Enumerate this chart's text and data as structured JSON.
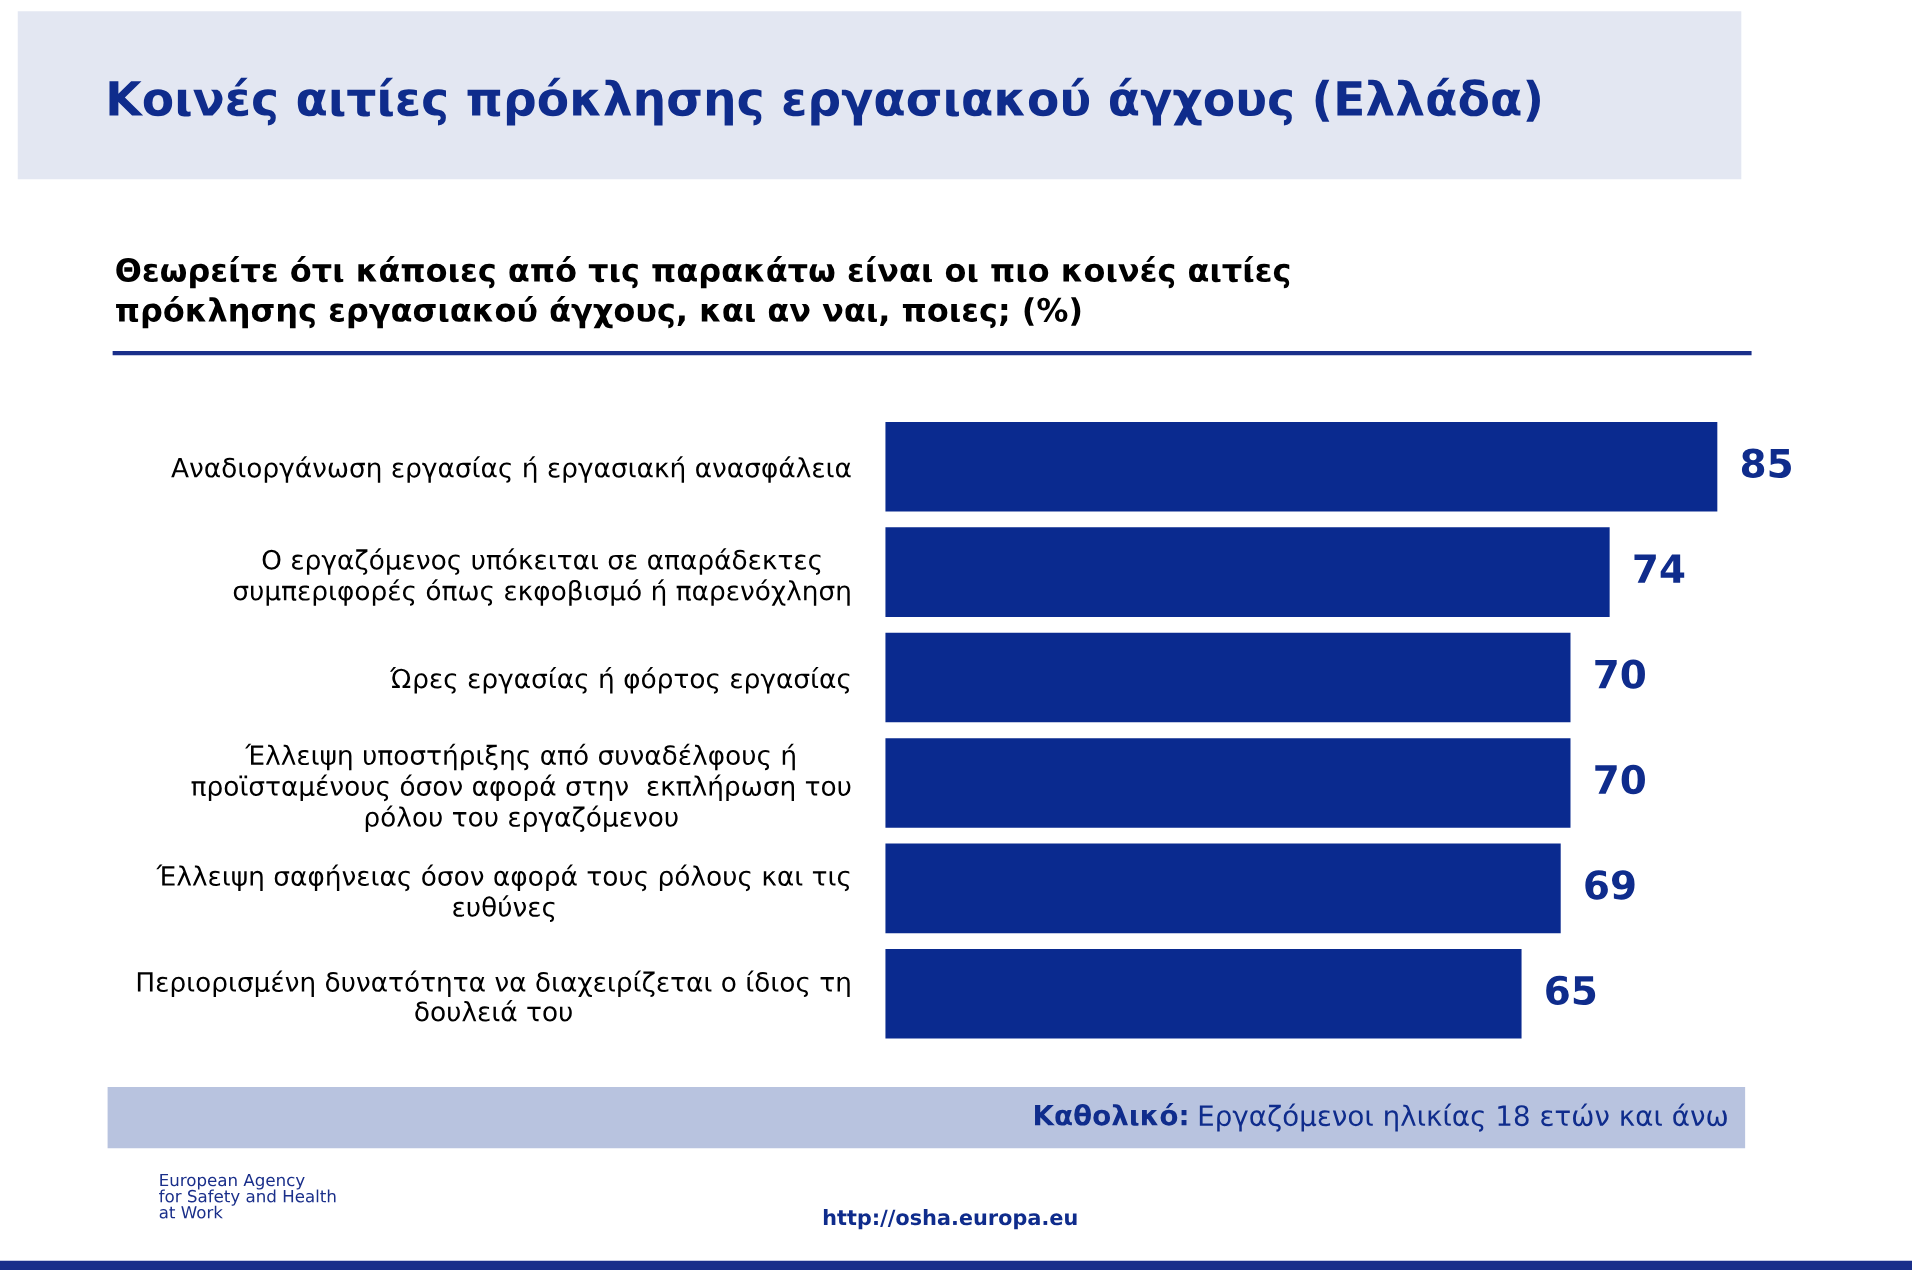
{
  "chart_data": {
    "type": "bar",
    "orientation": "horizontal",
    "title": "Κοινές αιτίες πρόκλησης εργασιακού άγχους (Ελλάδα)",
    "subtitle": "Θεωρείτε ότι κάποιες από τις παρακάτω είναι οι πιο κοινές αιτίες\nπρόκλησης εργασιακού άγχους, και αν ναι, ποιες; (%)",
    "categories": [
      "Αναδιοργάνωση εργασίας ή εργασιακή ανασφάλεια",
      "Ο εργαζόμενος υπόκειται σε απαράδεκτες\nσυμπεριφορές όπως εκφοβισμό ή παρενόχληση",
      "Ώρες εργασίας ή φόρτος εργασίας",
      "Έλλειψη υποστήριξης από συναδέλφους ή\nπροϊσταμένους όσον αφορά στην  εκπλήρωση του\nρόλου του εργαζόμενου",
      "Έλλειψη σαφήνειας όσον αφορά τους ρόλους και τις\nευθύνες",
      "Περιορισμένη δυνατότητα να διαχειρίζεται ο ίδιος τη\nδουλειά του"
    ],
    "values": [
      85,
      74,
      70,
      70,
      69,
      65
    ],
    "color": "#0a2a8f",
    "data_labels": true,
    "annotations": [
      "Καθολικό:",
      "Εργαζόμενοι ηλικίας 18 ετών και άνω",
      "European Agency\nfor Safety and Health\nat Work",
      "http://osha.europa.eu"
    ]
  }
}
